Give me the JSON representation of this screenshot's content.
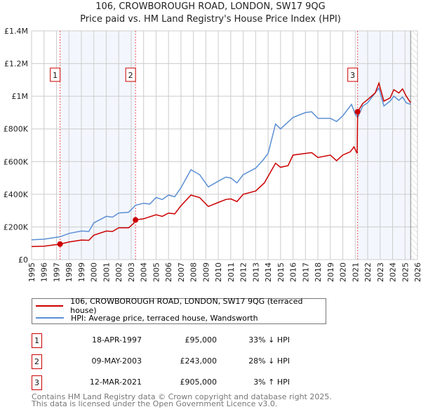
{
  "title": "106, CROWBOROUGH ROAD, LONDON, SW17 9QG",
  "subtitle": "Price paid vs. HM Land Registry's House Price Index (HPI)",
  "chart_data": {
    "type": "line",
    "xlim": [
      1995,
      2026
    ],
    "ylim": [
      0,
      1400000
    ],
    "y_ticks": [
      {
        "v": 0,
        "label": "£0"
      },
      {
        "v": 200000,
        "label": "£200K"
      },
      {
        "v": 400000,
        "label": "£400K"
      },
      {
        "v": 600000,
        "label": "£600K"
      },
      {
        "v": 800000,
        "label": "£800K"
      },
      {
        "v": 1000000,
        "label": "£1M"
      },
      {
        "v": 1200000,
        "label": "£1.2M"
      },
      {
        "v": 1400000,
        "label": "£1.4M"
      }
    ],
    "x_ticks": [
      "1995",
      "1996",
      "1997",
      "1998",
      "1999",
      "2000",
      "2001",
      "2002",
      "2003",
      "2004",
      "2005",
      "2006",
      "2007",
      "2008",
      "2009",
      "2010",
      "2011",
      "2012",
      "2013",
      "2014",
      "2015",
      "2016",
      "2017",
      "2018",
      "2019",
      "2020",
      "2021",
      "2022",
      "2023",
      "2024",
      "2025",
      "2026"
    ],
    "data_end": 2025.45,
    "series": [
      {
        "name": "106, CROWBOROUGH ROAD, LONDON, SW17 9QG (terraced house)",
        "color": "#cc0000",
        "points": [
          [
            1995,
            80000
          ],
          [
            1996,
            82000
          ],
          [
            1997.29,
            95000
          ],
          [
            1998,
            108000
          ],
          [
            1999,
            120000
          ],
          [
            1999.6,
            118000
          ],
          [
            2000,
            150000
          ],
          [
            2001,
            175000
          ],
          [
            2001.5,
            172000
          ],
          [
            2002,
            195000
          ],
          [
            2002.8,
            195000
          ],
          [
            2003.2,
            222000
          ],
          [
            2003.35,
            243000
          ],
          [
            2004,
            250000
          ],
          [
            2005,
            275000
          ],
          [
            2005.5,
            265000
          ],
          [
            2006,
            285000
          ],
          [
            2006.5,
            280000
          ],
          [
            2007,
            330000
          ],
          [
            2007.8,
            395000
          ],
          [
            2008.5,
            380000
          ],
          [
            2009.2,
            325000
          ],
          [
            2010,
            350000
          ],
          [
            2010.6,
            368000
          ],
          [
            2011,
            372000
          ],
          [
            2011.5,
            355000
          ],
          [
            2012,
            400000
          ],
          [
            2013,
            420000
          ],
          [
            2013.7,
            470000
          ],
          [
            2014,
            510000
          ],
          [
            2014.6,
            590000
          ],
          [
            2015,
            565000
          ],
          [
            2015.6,
            575000
          ],
          [
            2016,
            640000
          ],
          [
            2017,
            650000
          ],
          [
            2017.5,
            655000
          ],
          [
            2018,
            625000
          ],
          [
            2019,
            640000
          ],
          [
            2019.5,
            605000
          ],
          [
            2020,
            640000
          ],
          [
            2020.6,
            660000
          ],
          [
            2020.9,
            690000
          ],
          [
            2021.15,
            650000
          ],
          [
            2021.19,
            905000
          ],
          [
            2021.6,
            955000
          ],
          [
            2022,
            980000
          ],
          [
            2022.6,
            1020000
          ],
          [
            2022.9,
            1080000
          ],
          [
            2023.3,
            970000
          ],
          [
            2023.8,
            990000
          ],
          [
            2024.1,
            1040000
          ],
          [
            2024.5,
            1020000
          ],
          [
            2024.8,
            1045000
          ],
          [
            2025.1,
            1000000
          ],
          [
            2025.45,
            960000
          ]
        ]
      },
      {
        "name": "HPI: Average price, terraced house, Wandsworth",
        "color": "#5b8fd4",
        "points": [
          [
            1995,
            121000
          ],
          [
            1996,
            125000
          ],
          [
            1997.29,
            140000
          ],
          [
            1998,
            160000
          ],
          [
            1999,
            175000
          ],
          [
            1999.6,
            172000
          ],
          [
            2000,
            225000
          ],
          [
            2001,
            265000
          ],
          [
            2001.5,
            260000
          ],
          [
            2002,
            285000
          ],
          [
            2002.8,
            290000
          ],
          [
            2003.35,
            333000
          ],
          [
            2004,
            345000
          ],
          [
            2004.5,
            340000
          ],
          [
            2005,
            380000
          ],
          [
            2005.5,
            368000
          ],
          [
            2006,
            395000
          ],
          [
            2006.5,
            385000
          ],
          [
            2007,
            440000
          ],
          [
            2007.8,
            550000
          ],
          [
            2008.5,
            520000
          ],
          [
            2009.2,
            445000
          ],
          [
            2010,
            480000
          ],
          [
            2010.6,
            505000
          ],
          [
            2011,
            500000
          ],
          [
            2011.5,
            470000
          ],
          [
            2012,
            520000
          ],
          [
            2013,
            560000
          ],
          [
            2013.6,
            610000
          ],
          [
            2014,
            650000
          ],
          [
            2014.6,
            830000
          ],
          [
            2015,
            800000
          ],
          [
            2016,
            870000
          ],
          [
            2017,
            900000
          ],
          [
            2017.5,
            905000
          ],
          [
            2018,
            865000
          ],
          [
            2019,
            865000
          ],
          [
            2019.5,
            845000
          ],
          [
            2020,
            880000
          ],
          [
            2020.7,
            950000
          ],
          [
            2021.0,
            890000
          ],
          [
            2021.2,
            870000
          ],
          [
            2021.6,
            940000
          ],
          [
            2022,
            960000
          ],
          [
            2022.9,
            1050000
          ],
          [
            2023.3,
            940000
          ],
          [
            2023.8,
            970000
          ],
          [
            2024.1,
            1000000
          ],
          [
            2024.5,
            975000
          ],
          [
            2024.8,
            995000
          ],
          [
            2025.1,
            960000
          ],
          [
            2025.45,
            950000
          ]
        ]
      }
    ],
    "sales": [
      {
        "id": "1",
        "x": 1997.29,
        "y": 95000
      },
      {
        "id": "2",
        "x": 2003.35,
        "y": 243000
      },
      {
        "id": "3",
        "x": 2021.19,
        "y": 905000
      }
    ]
  },
  "legend": {
    "items": [
      {
        "label": "106, CROWBOROUGH ROAD, LONDON, SW17 9QG (terraced house)",
        "color": "#cc0000"
      },
      {
        "label": "HPI: Average price, terraced house, Wandsworth",
        "color": "#5b8fd4"
      }
    ]
  },
  "transactions": [
    {
      "id": "1",
      "date": "18-APR-1997",
      "price": "£95,000",
      "hpi": "33% ↓ HPI"
    },
    {
      "id": "2",
      "date": "09-MAY-2003",
      "price": "£243,000",
      "hpi": "28% ↓ HPI"
    },
    {
      "id": "3",
      "date": "12-MAR-2021",
      "price": "£905,000",
      "hpi": "3% ↑ HPI"
    }
  ],
  "footer": {
    "line1": "Contains HM Land Registry data © Crown copyright and database right 2025.",
    "line2": "This data is licensed under the Open Government Licence v3.0."
  }
}
